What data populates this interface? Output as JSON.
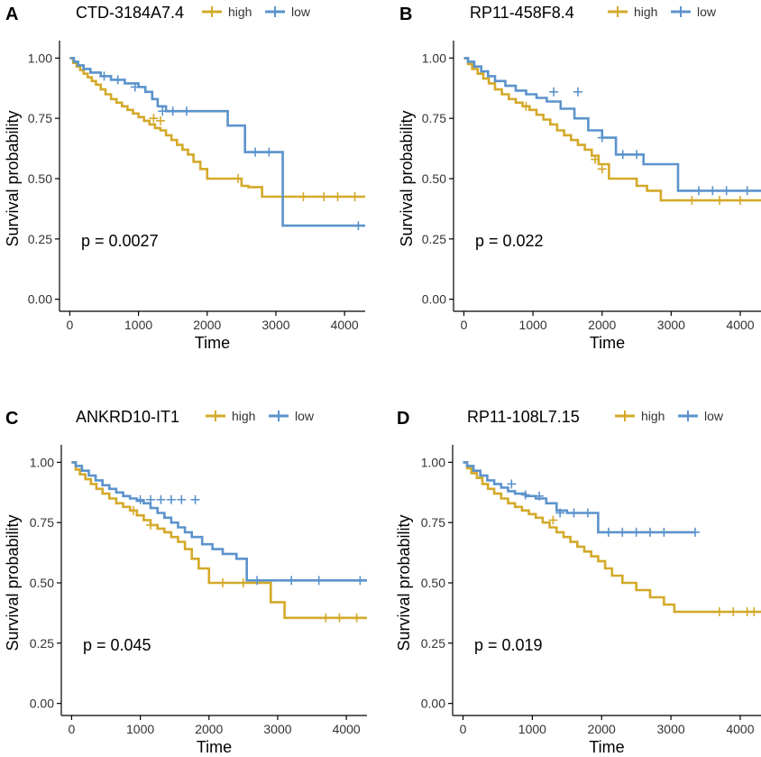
{
  "colors": {
    "high": "#D4A92A",
    "low": "#5B93CC",
    "axis": "#000000"
  },
  "chart_data": [
    {
      "panel": "A",
      "type": "line",
      "title": "CTD-3184A7.4",
      "xlabel": "Time",
      "ylabel": "Survival probability",
      "xlim": [
        -150,
        4300
      ],
      "ylim": [
        -0.05,
        1.05
      ],
      "xticks": [
        "0",
        "1000",
        "2000",
        "3000",
        "4000"
      ],
      "xtick_values": [
        0,
        1000,
        2000,
        3000,
        4000
      ],
      "yticks": [
        "0.00",
        "0.25",
        "0.50",
        "0.75",
        "1.00"
      ],
      "ytick_values": [
        0,
        0.25,
        0.5,
        0.75,
        1.0
      ],
      "annotation": "p = 0.0027",
      "legend": [
        "high",
        "low"
      ],
      "legend_position": "top",
      "series": [
        {
          "name": "high",
          "x": [
            0,
            50,
            100,
            150,
            200,
            260,
            320,
            380,
            450,
            520,
            600,
            680,
            760,
            840,
            920,
            1000,
            1080,
            1160,
            1240,
            1320,
            1400,
            1480,
            1560,
            1640,
            1720,
            1800,
            1900,
            2000,
            2150,
            2500,
            2600,
            2800,
            3000,
            4300
          ],
          "y": [
            1.0,
            0.98,
            0.965,
            0.95,
            0.935,
            0.92,
            0.905,
            0.89,
            0.87,
            0.85,
            0.83,
            0.815,
            0.8,
            0.785,
            0.77,
            0.755,
            0.74,
            0.725,
            0.71,
            0.7,
            0.68,
            0.66,
            0.64,
            0.62,
            0.6,
            0.57,
            0.54,
            0.5,
            0.5,
            0.47,
            0.465,
            0.425,
            0.425,
            0.425
          ],
          "censor_x": [
            1220,
            1320,
            2450,
            3400,
            3700,
            3900,
            4150
          ],
          "censor_y": [
            0.75,
            0.74,
            0.5,
            0.425,
            0.425,
            0.425,
            0.425
          ]
        },
        {
          "name": "low",
          "x": [
            0,
            60,
            120,
            200,
            300,
            450,
            600,
            800,
            1000,
            1100,
            1200,
            1280,
            1400,
            2100,
            2300,
            2550,
            3000,
            3100,
            4300
          ],
          "y": [
            1.0,
            0.985,
            0.97,
            0.955,
            0.94,
            0.925,
            0.91,
            0.895,
            0.88,
            0.86,
            0.83,
            0.8,
            0.78,
            0.78,
            0.72,
            0.61,
            0.61,
            0.305,
            0.305
          ],
          "censor_x": [
            500,
            700,
            950,
            1350,
            1500,
            1700,
            2700,
            2900,
            4200
          ],
          "censor_y": [
            0.925,
            0.91,
            0.88,
            0.78,
            0.78,
            0.78,
            0.61,
            0.61,
            0.305
          ]
        }
      ]
    },
    {
      "panel": "B",
      "type": "line",
      "title": "RP11-458F8.4",
      "xlabel": "Time",
      "ylabel": "Survival probability",
      "xlim": [
        -150,
        4300
      ],
      "ylim": [
        -0.05,
        1.05
      ],
      "xticks": [
        "0",
        "1000",
        "2000",
        "3000",
        "4000"
      ],
      "xtick_values": [
        0,
        1000,
        2000,
        3000,
        4000
      ],
      "yticks": [
        "0.00",
        "0.25",
        "0.50",
        "0.75",
        "1.00"
      ],
      "ytick_values": [
        0,
        0.25,
        0.5,
        0.75,
        1.0
      ],
      "annotation": "p = 0.022",
      "legend": [
        "high",
        "low"
      ],
      "legend_position": "top",
      "series": [
        {
          "name": "high",
          "x": [
            0,
            60,
            120,
            200,
            280,
            360,
            450,
            550,
            650,
            750,
            850,
            950,
            1050,
            1150,
            1250,
            1350,
            1450,
            1550,
            1650,
            1750,
            1850,
            1950,
            2100,
            2350,
            2500,
            2650,
            2850,
            3000,
            4300
          ],
          "y": [
            1.0,
            0.975,
            0.955,
            0.935,
            0.915,
            0.895,
            0.87,
            0.85,
            0.83,
            0.815,
            0.8,
            0.785,
            0.765,
            0.745,
            0.725,
            0.7,
            0.68,
            0.66,
            0.64,
            0.62,
            0.595,
            0.56,
            0.5,
            0.5,
            0.47,
            0.45,
            0.41,
            0.41,
            0.41
          ],
          "censor_x": [
            900,
            1900,
            2000,
            3300,
            3700,
            4000
          ],
          "censor_y": [
            0.8,
            0.58,
            0.54,
            0.41,
            0.41,
            0.41
          ]
        },
        {
          "name": "low",
          "x": [
            0,
            60,
            150,
            250,
            350,
            450,
            600,
            750,
            900,
            1050,
            1200,
            1400,
            1600,
            1800,
            2000,
            2200,
            2600,
            2800,
            3100,
            4300
          ],
          "y": [
            1.0,
            0.985,
            0.965,
            0.945,
            0.925,
            0.905,
            0.885,
            0.865,
            0.85,
            0.835,
            0.82,
            0.79,
            0.75,
            0.7,
            0.67,
            0.6,
            0.56,
            0.56,
            0.45,
            0.45
          ],
          "censor_x": [
            1300,
            1650,
            2000,
            2300,
            2500,
            3400,
            3600,
            3800,
            4100
          ],
          "censor_y": [
            0.86,
            0.86,
            0.67,
            0.6,
            0.6,
            0.45,
            0.45,
            0.45,
            0.45
          ]
        }
      ]
    },
    {
      "panel": "C",
      "type": "line",
      "title": "ANKRD10-IT1",
      "xlabel": "Time",
      "ylabel": "Survival probability",
      "xlim": [
        -150,
        4300
      ],
      "ylim": [
        -0.05,
        1.05
      ],
      "xticks": [
        "0",
        "1000",
        "2000",
        "3000",
        "4000"
      ],
      "xtick_values": [
        0,
        1000,
        2000,
        3000,
        4000
      ],
      "yticks": [
        "0.00",
        "0.25",
        "0.50",
        "0.75",
        "1.00"
      ],
      "ytick_values": [
        0,
        0.25,
        0.5,
        0.75,
        1.0
      ],
      "annotation": "p = 0.045",
      "legend": [
        "high",
        "low"
      ],
      "legend_position": "top",
      "series": [
        {
          "name": "high",
          "x": [
            0,
            60,
            120,
            200,
            280,
            360,
            450,
            550,
            650,
            750,
            850,
            950,
            1050,
            1150,
            1250,
            1350,
            1450,
            1550,
            1650,
            1750,
            1850,
            2000,
            2800,
            2900,
            3000,
            3100,
            4300
          ],
          "y": [
            1.0,
            0.97,
            0.95,
            0.93,
            0.91,
            0.89,
            0.87,
            0.85,
            0.83,
            0.815,
            0.8,
            0.78,
            0.76,
            0.74,
            0.725,
            0.71,
            0.69,
            0.67,
            0.64,
            0.6,
            0.56,
            0.5,
            0.5,
            0.42,
            0.42,
            0.355,
            0.355
          ],
          "censor_x": [
            900,
            1150,
            2200,
            2500,
            3700,
            3900,
            4150
          ],
          "censor_y": [
            0.8,
            0.74,
            0.5,
            0.5,
            0.355,
            0.355,
            0.355
          ]
        },
        {
          "name": "low",
          "x": [
            0,
            60,
            150,
            250,
            350,
            450,
            550,
            650,
            750,
            850,
            950,
            1050,
            1150,
            1250,
            1350,
            1450,
            1550,
            1650,
            1750,
            1900,
            2050,
            2200,
            2400,
            2550,
            2650,
            4300
          ],
          "y": [
            1.0,
            0.985,
            0.965,
            0.945,
            0.925,
            0.905,
            0.89,
            0.875,
            0.86,
            0.85,
            0.84,
            0.83,
            0.81,
            0.79,
            0.77,
            0.75,
            0.73,
            0.71,
            0.69,
            0.66,
            0.64,
            0.62,
            0.6,
            0.51,
            0.51,
            0.51
          ],
          "censor_x": [
            1000,
            1150,
            1300,
            1450,
            1600,
            1800,
            2700,
            3200,
            3600,
            4200
          ],
          "censor_y": [
            0.845,
            0.845,
            0.845,
            0.845,
            0.845,
            0.845,
            0.51,
            0.51,
            0.51,
            0.51
          ]
        }
      ]
    },
    {
      "panel": "D",
      "type": "line",
      "title": "RP11-108L7.15",
      "xlabel": "Time",
      "ylabel": "Survival probability",
      "xlim": [
        -150,
        4300
      ],
      "ylim": [
        -0.05,
        1.05
      ],
      "xticks": [
        "0",
        "1000",
        "2000",
        "3000",
        "4000"
      ],
      "xtick_values": [
        0,
        1000,
        2000,
        3000,
        4000
      ],
      "yticks": [
        "0.00",
        "0.25",
        "0.50",
        "0.75",
        "1.00"
      ],
      "ytick_values": [
        0,
        0.25,
        0.5,
        0.75,
        1.0
      ],
      "annotation": "p = 0.019",
      "legend": [
        "high",
        "low"
      ],
      "legend_position": "top",
      "series": [
        {
          "name": "high",
          "x": [
            0,
            60,
            120,
            200,
            280,
            360,
            450,
            550,
            650,
            750,
            850,
            950,
            1050,
            1150,
            1250,
            1350,
            1450,
            1550,
            1650,
            1750,
            1850,
            1950,
            2050,
            2150,
            2300,
            2500,
            2700,
            2900,
            3050,
            3200,
            4300
          ],
          "y": [
            1.0,
            0.975,
            0.955,
            0.935,
            0.91,
            0.89,
            0.87,
            0.85,
            0.83,
            0.815,
            0.8,
            0.785,
            0.77,
            0.75,
            0.73,
            0.71,
            0.69,
            0.67,
            0.65,
            0.63,
            0.61,
            0.59,
            0.56,
            0.53,
            0.5,
            0.47,
            0.44,
            0.41,
            0.38,
            0.38,
            0.38
          ],
          "censor_x": [
            1300,
            3700,
            3900,
            4100,
            4200
          ],
          "censor_y": [
            0.76,
            0.38,
            0.38,
            0.38,
            0.38
          ]
        },
        {
          "name": "low",
          "x": [
            0,
            60,
            150,
            250,
            350,
            450,
            550,
            650,
            750,
            900,
            1050,
            1200,
            1350,
            1500,
            1700,
            1900,
            1950,
            3350
          ],
          "y": [
            1.0,
            0.985,
            0.965,
            0.945,
            0.925,
            0.91,
            0.895,
            0.88,
            0.87,
            0.86,
            0.85,
            0.83,
            0.8,
            0.79,
            0.79,
            0.79,
            0.71,
            0.71
          ],
          "censor_x": [
            700,
            900,
            1100,
            1400,
            1600,
            1800,
            2100,
            2300,
            2500,
            2700,
            2900,
            3350
          ],
          "censor_y": [
            0.91,
            0.865,
            0.86,
            0.79,
            0.79,
            0.79,
            0.71,
            0.71,
            0.71,
            0.71,
            0.71,
            0.71
          ]
        }
      ]
    }
  ]
}
